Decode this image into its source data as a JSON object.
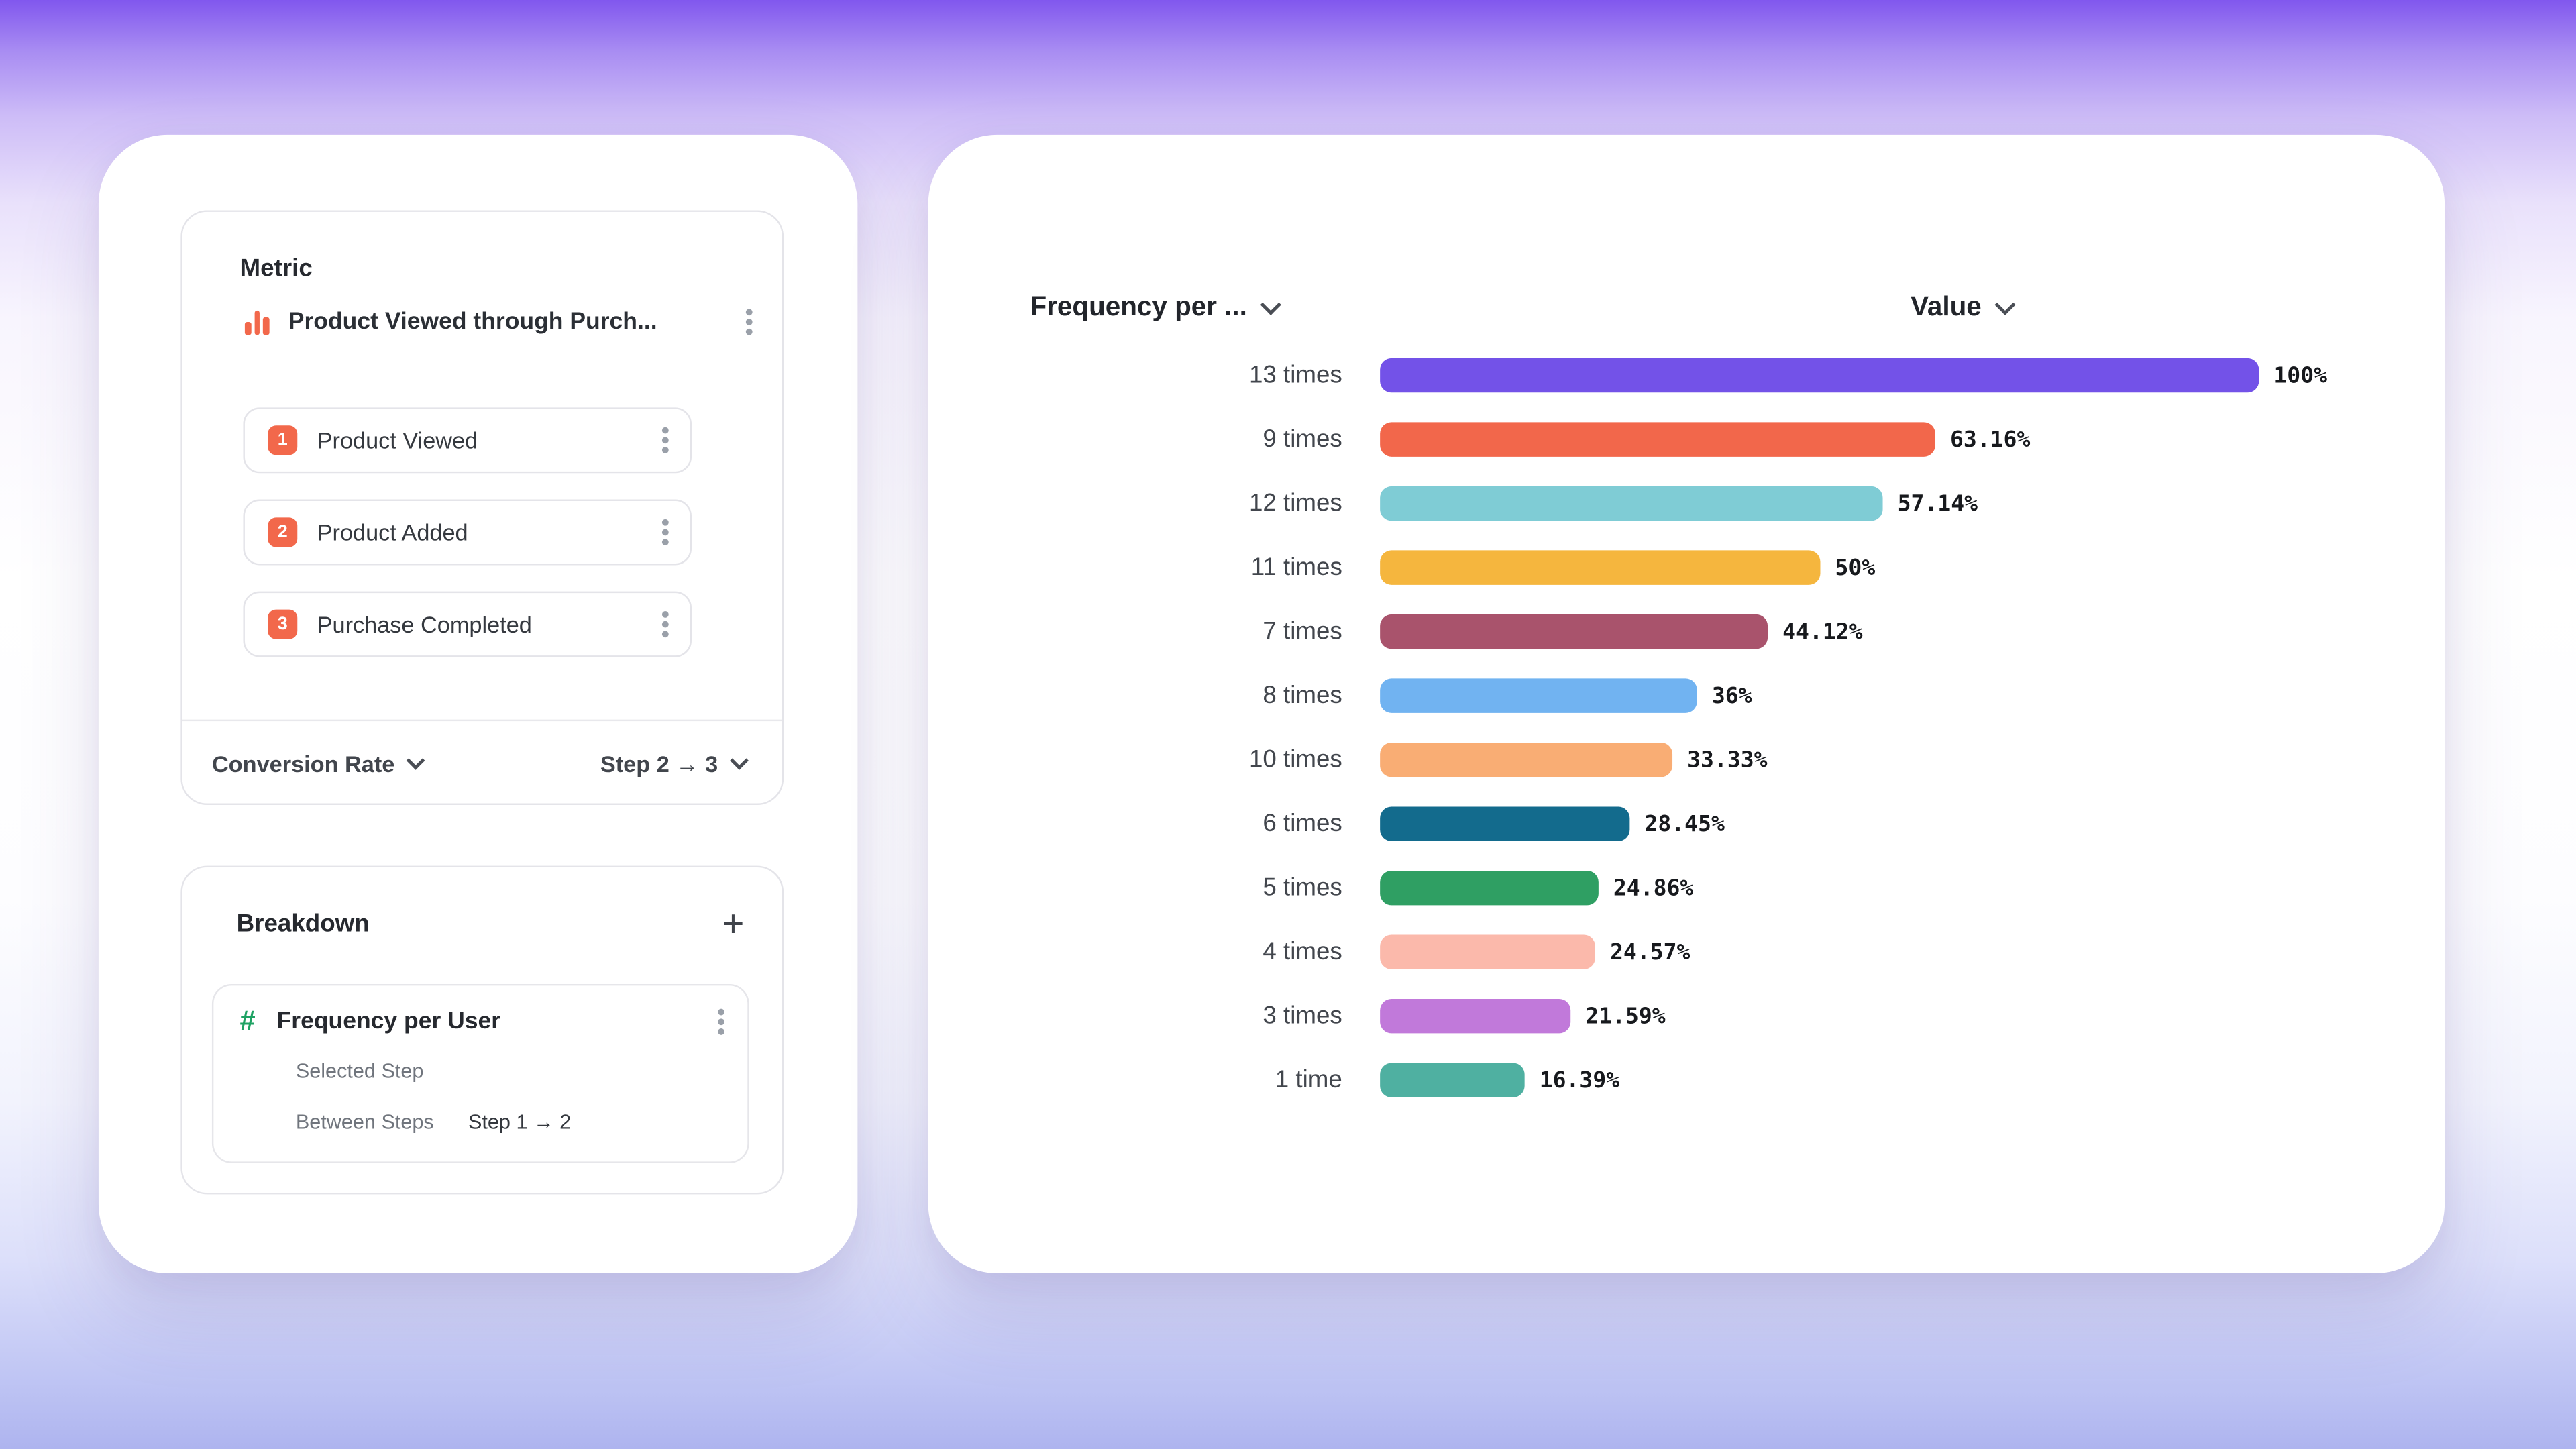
{
  "left_panel": {
    "metric": {
      "title": "Metric",
      "funnel": {
        "name": "Product Viewed through Purch...",
        "steps": [
          {
            "number": "1",
            "label": "Product Viewed"
          },
          {
            "number": "2",
            "label": "Product Added"
          },
          {
            "number": "3",
            "label": "Purchase Completed"
          }
        ]
      },
      "footer": {
        "measurement": "Conversion Rate",
        "step_range": "Step 2 → 3"
      }
    },
    "breakdown": {
      "title": "Breakdown",
      "add_button": "+",
      "property": {
        "name": "Frequency per User",
        "selected_step_label": "Selected Step",
        "between_steps_label": "Between Steps",
        "between_steps_value": "Step 1 → 2"
      }
    }
  },
  "right_panel": {
    "breakdown_column_header": "Frequency per ...",
    "value_column_header": "Value"
  },
  "icons": {
    "hash": "#"
  },
  "chart_data": {
    "type": "bar",
    "orientation": "horizontal",
    "title": "",
    "xlabel": "Value",
    "ylabel": "Frequency per User",
    "categories": [
      "13 times",
      "9 times",
      "12 times",
      "11 times",
      "7 times",
      "8 times",
      "10 times",
      "6 times",
      "5 times",
      "4 times",
      "3 times",
      "1 time"
    ],
    "values": [
      100,
      63.16,
      57.14,
      50,
      44.12,
      36,
      33.33,
      28.45,
      24.86,
      24.57,
      21.59,
      16.39
    ],
    "value_labels": [
      "100%",
      "63.16%",
      "57.14%",
      "50%",
      "44.12%",
      "36%",
      "33.33%",
      "28.45%",
      "24.86%",
      "24.57%",
      "21.59%",
      "16.39%"
    ],
    "bar_colors": [
      "#7352e8",
      "#f2674b",
      "#7fccd5",
      "#f5b63e",
      "#a9536c",
      "#71b3f1",
      "#f9ad74",
      "#136b8d",
      "#2f9f63",
      "#fbb9ab",
      "#c179da",
      "#4fb0a1"
    ],
    "xlim": [
      0,
      100
    ],
    "grid": false,
    "legend": null
  },
  "colors": {
    "accent_orange": "#f2684b",
    "accent_green": "#1ea263",
    "background_top": "#8157ee",
    "background_bottom": "#aeb4ef"
  }
}
